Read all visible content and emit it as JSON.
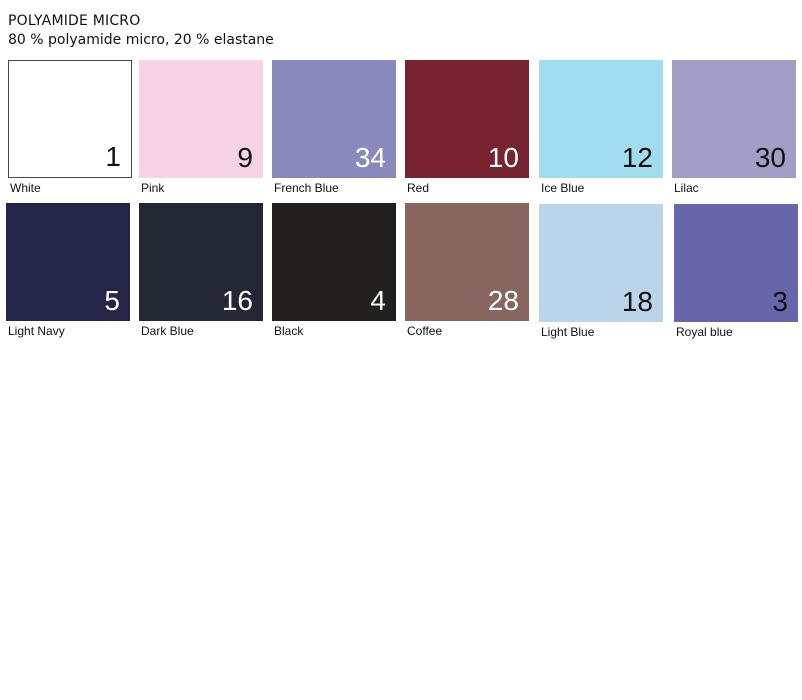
{
  "header": {
    "title": "POLYAMIDE MICRO",
    "subtitle": "80 % polyamide micro, 20 % elastane"
  },
  "swatches": [
    {
      "number": "1",
      "name": "White",
      "color": "#ffffff",
      "text_color": "#111111",
      "bordered": true
    },
    {
      "number": "9",
      "name": "Pink",
      "color": "#f8d3e6",
      "text_color": "#111111",
      "bordered": false
    },
    {
      "number": "34",
      "name": "French Blue",
      "color": "#8a89be",
      "text_color": "#ffffff",
      "bordered": false
    },
    {
      "number": "10",
      "name": "Red",
      "color": "#772430",
      "text_color": "#ffffff",
      "bordered": false
    },
    {
      "number": "12",
      "name": "Ice Blue",
      "color": "#a0dced",
      "text_color": "#111111",
      "bordered": false
    },
    {
      "number": "30",
      "name": "Lilac",
      "color": "#a19fc5",
      "text_color": "#111111",
      "bordered": false
    },
    {
      "number": "5",
      "name": "Light Navy",
      "color": "#25254a",
      "text_color": "#ffffff",
      "bordered": false
    },
    {
      "number": "16",
      "name": "Dark Blue",
      "color": "#232733",
      "text_color": "#ffffff",
      "bordered": false
    },
    {
      "number": "4",
      "name": "Black",
      "color": "#232120",
      "text_color": "#ffffff",
      "bordered": false
    },
    {
      "number": "28",
      "name": "Coffee",
      "color": "#88665f",
      "text_color": "#ffffff",
      "bordered": false
    },
    {
      "number": "18",
      "name": "Light Blue",
      "color": "#bad4e9",
      "text_color": "#111111",
      "bordered": false
    },
    {
      "number": "3",
      "name": "Royal blue",
      "color": "#6866aa",
      "text_color": "#111111",
      "bordered": false
    }
  ]
}
